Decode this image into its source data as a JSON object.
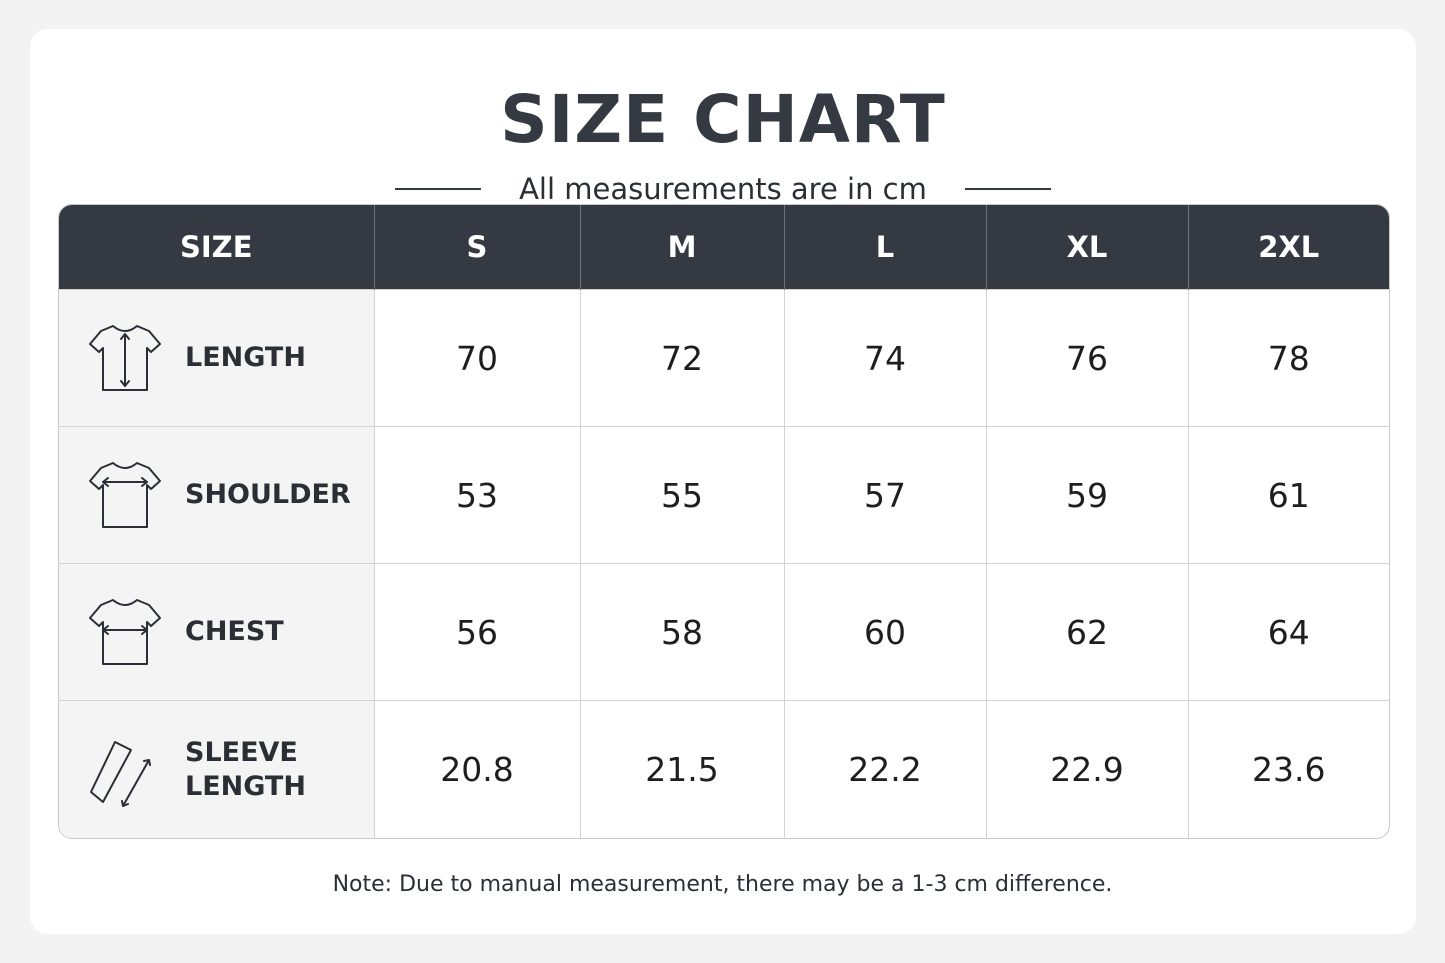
{
  "title": "SIZE CHART",
  "subtitle": "All measurements are in cm",
  "note": "Note: Due to manual measurement, there may be a 1-3 cm difference.",
  "colors": {
    "header_bg": "#353a42",
    "label_bg": "#f4f4f4",
    "text": "#2b2f35"
  },
  "chart_data": {
    "type": "table",
    "title": "SIZE CHART",
    "subtitle": "All measurements are in cm",
    "header_label": "SIZE",
    "sizes": [
      "S",
      "M",
      "L",
      "XL",
      "2XL"
    ],
    "rows": [
      {
        "label": "LENGTH",
        "icon": "tshirt-length-icon",
        "values": [
          "70",
          "72",
          "74",
          "76",
          "78"
        ]
      },
      {
        "label": "SHOULDER",
        "icon": "tshirt-shoulder-icon",
        "values": [
          "53",
          "55",
          "57",
          "59",
          "61"
        ]
      },
      {
        "label": "CHEST",
        "icon": "tshirt-chest-icon",
        "values": [
          "56",
          "58",
          "60",
          "62",
          "64"
        ]
      },
      {
        "label": "SLEEVE\nLENGTH",
        "icon": "sleeve-length-icon",
        "values": [
          "20.8",
          "21.5",
          "22.2",
          "22.9",
          "23.6"
        ]
      }
    ]
  }
}
